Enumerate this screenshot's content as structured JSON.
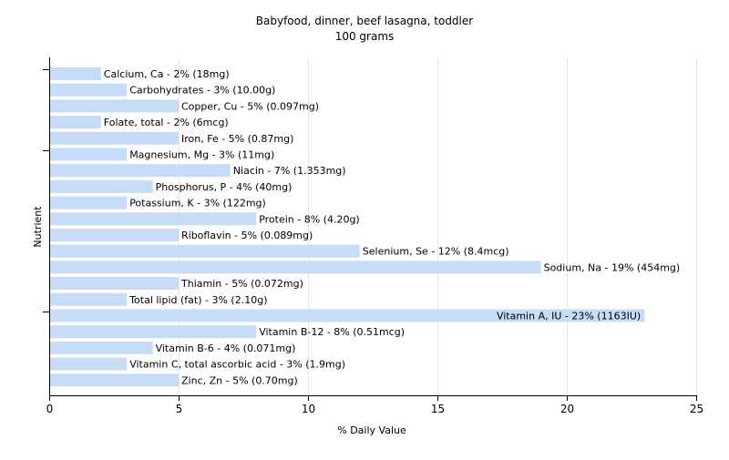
{
  "chart_data": {
    "type": "bar",
    "orientation": "horizontal",
    "title": "Babyfood, dinner, beef lasagna, toddler",
    "subtitle": "100 grams",
    "xlabel": "% Daily Value",
    "ylabel": "Nutrient",
    "xlim": [
      0,
      25
    ],
    "xticks": [
      0,
      5,
      10,
      15,
      20,
      25
    ],
    "grid": "vertical",
    "bar_color": "#c6dcf7",
    "grid_color": "#e6e6e6",
    "categories": [
      "Calcium, Ca",
      "Carbohydrates",
      "Copper, Cu",
      "Folate, total",
      "Iron, Fe",
      "Magnesium, Mg",
      "Niacin",
      "Phosphorus, P",
      "Potassium, K",
      "Protein",
      "Riboflavin",
      "Selenium, Se",
      "Sodium, Na",
      "Thiamin",
      "Total lipid (fat)",
      "Vitamin A, IU",
      "Vitamin B-12",
      "Vitamin B-6",
      "Vitamin C, total ascorbic acid",
      "Zinc, Zn"
    ],
    "values": [
      2,
      3,
      5,
      2,
      5,
      3,
      7,
      4,
      3,
      8,
      5,
      12,
      19,
      5,
      3,
      23,
      8,
      4,
      3,
      5
    ],
    "labels": [
      "Calcium, Ca - 2% (18mg)",
      "Carbohydrates - 3% (10.00g)",
      "Copper, Cu - 5% (0.097mg)",
      "Folate, total - 2% (6mcg)",
      "Iron, Fe - 5% (0.87mg)",
      "Magnesium, Mg - 3% (11mg)",
      "Niacin - 7% (1.353mg)",
      "Phosphorus, P - 4% (40mg)",
      "Potassium, K - 3% (122mg)",
      "Protein - 8% (4.20g)",
      "Riboflavin - 5% (0.089mg)",
      "Selenium, Se - 12% (8.4mcg)",
      "Sodium, Na - 19% (454mg)",
      "Thiamin - 5% (0.072mg)",
      "Total lipid (fat) - 3% (2.10g)",
      "Vitamin A, IU - 23% (1163IU)",
      "Vitamin B-12 - 8% (0.51mcg)",
      "Vitamin B-6 - 4% (0.071mg)",
      "Vitamin C, total ascorbic acid - 3% (1.9mg)",
      "Zinc, Zn - 5% (0.70mg)"
    ]
  }
}
